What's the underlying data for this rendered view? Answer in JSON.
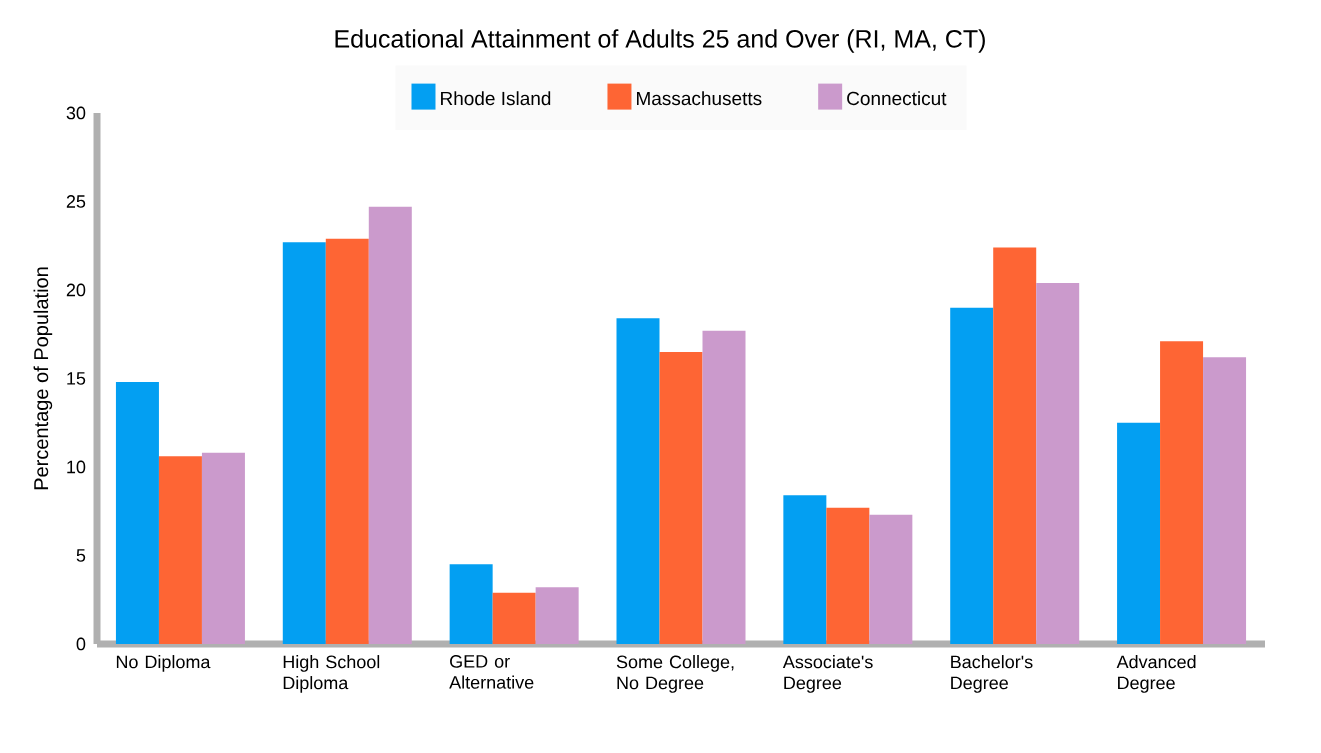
{
  "chart_data": {
    "type": "bar",
    "title": "Educational Attainment of Adults 25 and Over (RI, MA, CT)",
    "ylabel": "Percentage of Population",
    "categories": [
      "No Diploma",
      "High School Diploma",
      "GED or Alternative",
      "Some College, No Degree",
      "Associate's Degree",
      "Bachelor's Degree",
      "Advanced Degree"
    ],
    "series": [
      {
        "name": "Rhode Island",
        "color": "#039ff2",
        "values": [
          14.8,
          22.7,
          4.5,
          18.4,
          8.4,
          19.0,
          12.5
        ]
      },
      {
        "name": "Massachusetts",
        "color": "#fe6534",
        "values": [
          10.6,
          22.9,
          2.9,
          16.5,
          7.7,
          22.4,
          17.1
        ]
      },
      {
        "name": "Connecticut",
        "color": "#cb9acc",
        "values": [
          10.8,
          24.7,
          3.2,
          17.7,
          7.3,
          20.4,
          16.2
        ]
      }
    ],
    "ylim": [
      0,
      30
    ],
    "yticks": [
      0,
      5,
      10,
      15,
      20,
      25,
      30
    ],
    "legend": "top",
    "grid": false
  }
}
